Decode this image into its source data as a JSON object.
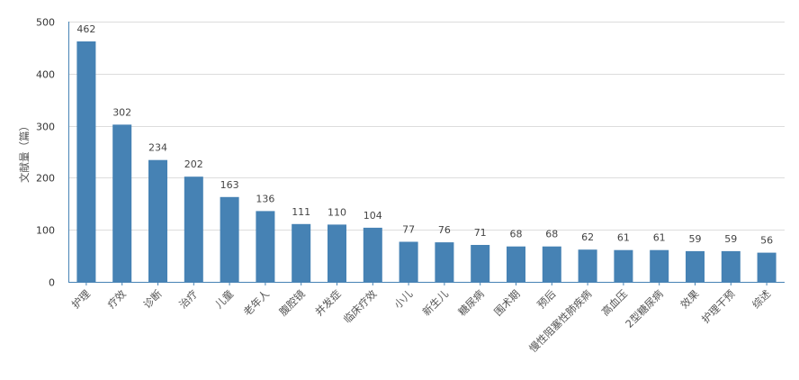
{
  "chart_data": {
    "type": "bar",
    "title": "",
    "xlabel": "",
    "ylabel": "文献量（篇）",
    "ylim": [
      0,
      500
    ],
    "yticks": [
      0,
      100,
      200,
      300,
      400,
      500
    ],
    "grid": true,
    "bar_color": "#4682b4",
    "categories": [
      "护理",
      "疗效",
      "诊断",
      "治疗",
      "儿童",
      "老年人",
      "腹腔镜",
      "并发症",
      "临床疗效",
      "小儿",
      "新生儿",
      "糖尿病",
      "围术期",
      "预后",
      "慢性阻塞性肺疾病",
      "高血压",
      "2型糖尿病",
      "效果",
      "护理干预",
      "综述"
    ],
    "values": [
      462,
      302,
      234,
      202,
      163,
      136,
      111,
      110,
      104,
      77,
      76,
      71,
      68,
      68,
      62,
      61,
      61,
      59,
      59,
      56
    ]
  }
}
